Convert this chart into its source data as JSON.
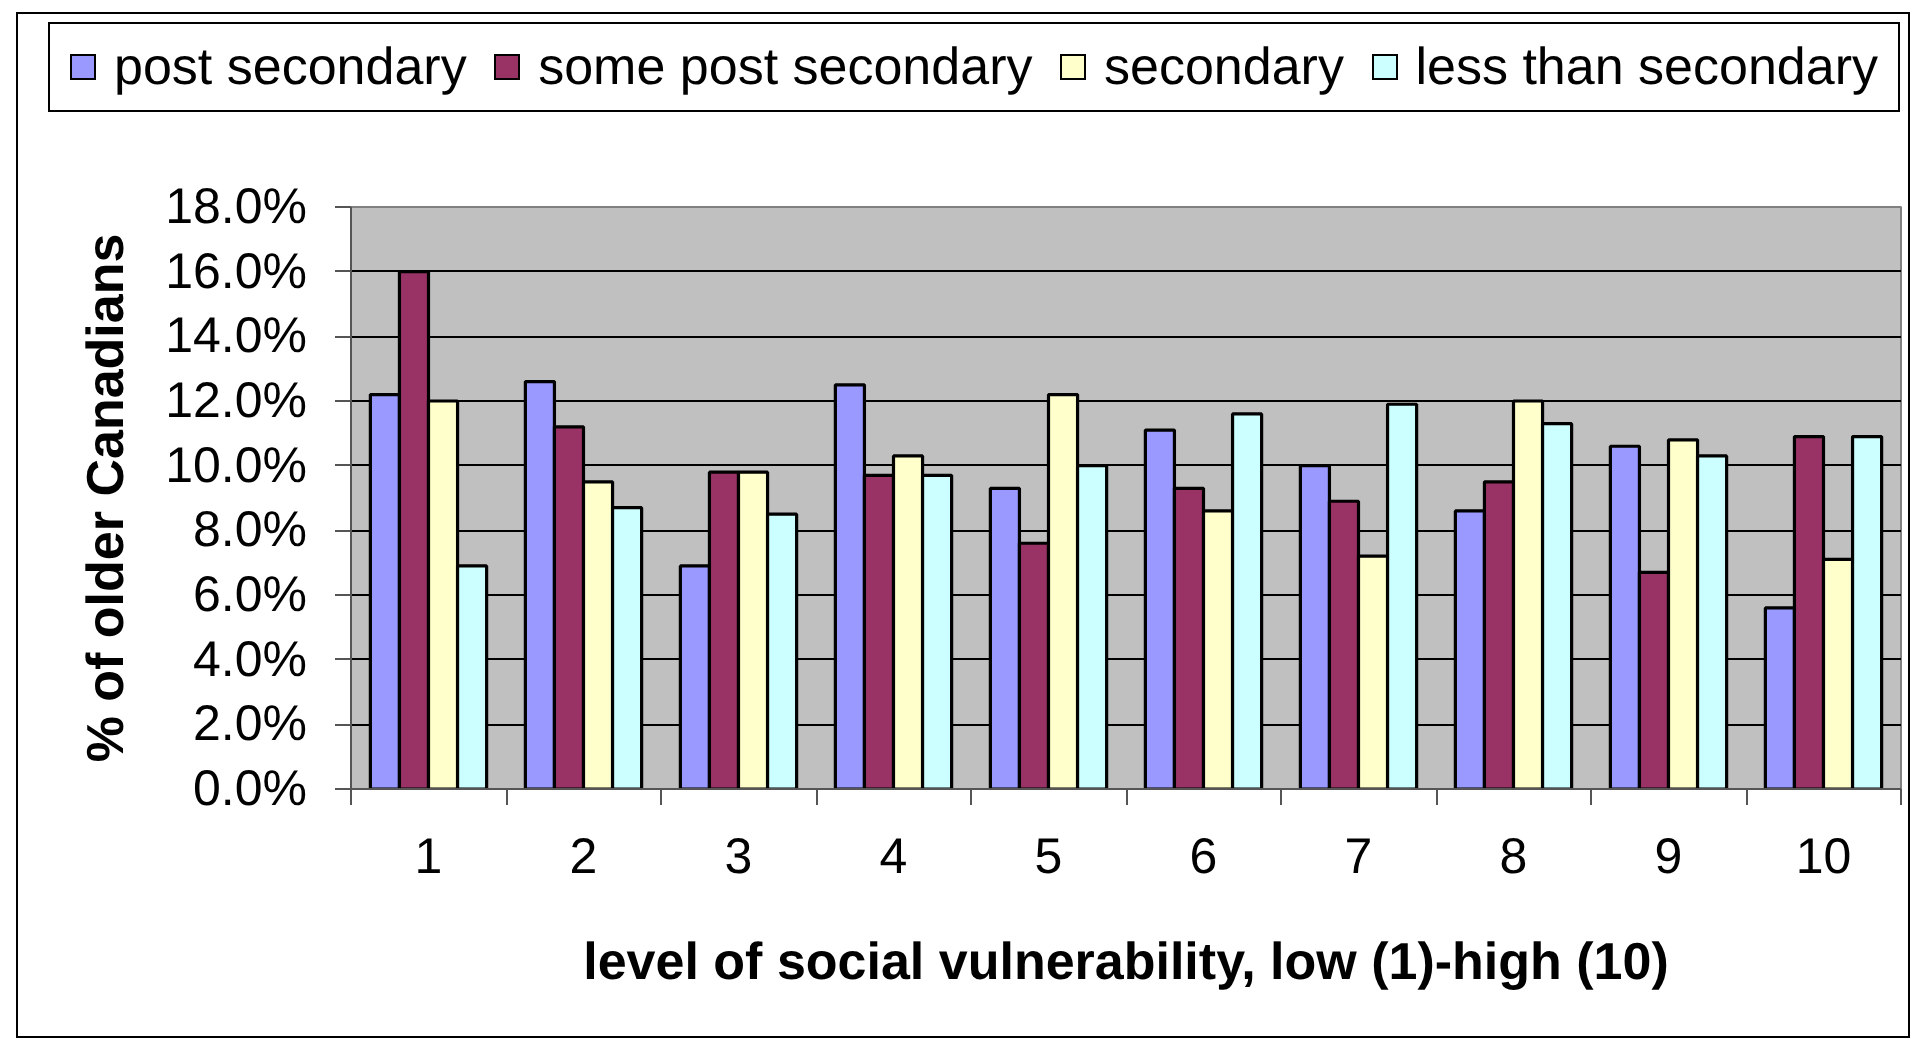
{
  "chart_data": {
    "type": "bar",
    "categories": [
      "1",
      "2",
      "3",
      "4",
      "5",
      "6",
      "7",
      "8",
      "9",
      "10"
    ],
    "xlabel": "level of social vulnerability, low (1)-high (10)",
    "ylabel": "% of older Canadians",
    "ylim": [
      0,
      18
    ],
    "yticks": [
      {
        "value": 0,
        "label": "0.0%"
      },
      {
        "value": 2,
        "label": "2.0%"
      },
      {
        "value": 4,
        "label": "4.0%"
      },
      {
        "value": 6,
        "label": "6.0%"
      },
      {
        "value": 8,
        "label": "8.0%"
      },
      {
        "value": 10,
        "label": "10.0%"
      },
      {
        "value": 12,
        "label": "12.0%"
      },
      {
        "value": 14,
        "label": "14.0%"
      },
      {
        "value": 16,
        "label": "16.0%"
      },
      {
        "value": 18,
        "label": "18.0%"
      }
    ],
    "grid": "y",
    "legend": "top",
    "series": [
      {
        "name": "post secondary",
        "color": "#9999ff",
        "values": [
          12.2,
          12.6,
          6.9,
          12.5,
          9.3,
          11.1,
          10.0,
          8.6,
          10.6,
          5.6
        ]
      },
      {
        "name": "some post secondary",
        "color": "#993366",
        "values": [
          16.0,
          11.2,
          9.8,
          9.7,
          7.6,
          9.3,
          8.9,
          9.5,
          6.7,
          10.9
        ]
      },
      {
        "name": "secondary",
        "color": "#ffffcc",
        "values": [
          12.0,
          9.5,
          9.8,
          10.3,
          12.2,
          8.6,
          7.2,
          12.0,
          10.8,
          7.1
        ]
      },
      {
        "name": "less than secondary",
        "color": "#ccffff",
        "values": [
          6.9,
          8.7,
          8.5,
          9.7,
          10.0,
          11.6,
          11.9,
          11.3,
          10.3,
          10.9
        ]
      }
    ]
  }
}
